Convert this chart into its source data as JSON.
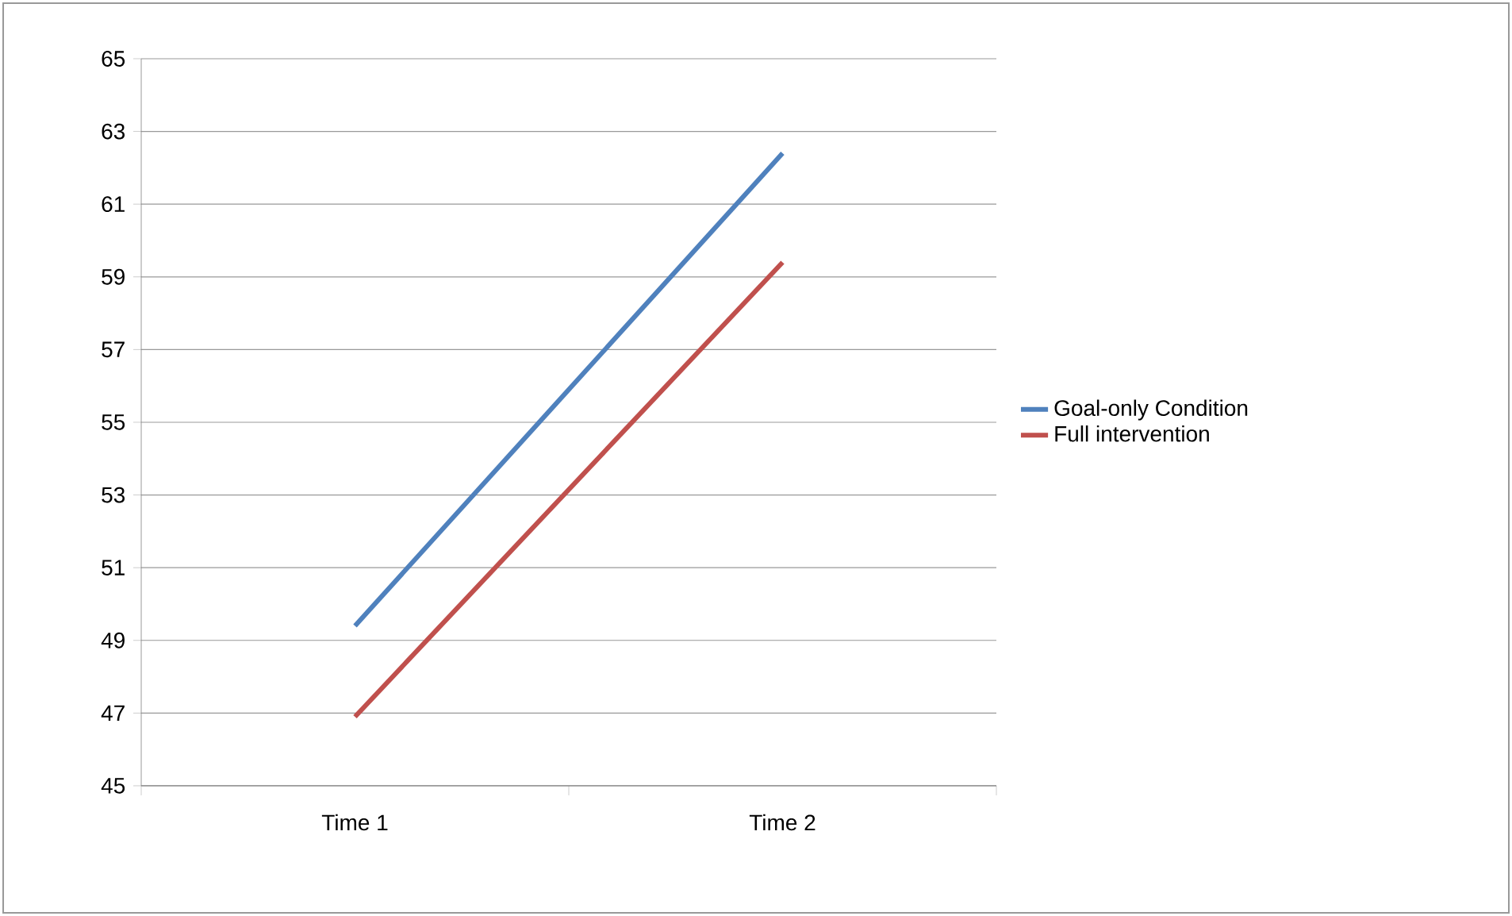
{
  "chart_data": {
    "type": "line",
    "categories": [
      "Time 1",
      "Time 2"
    ],
    "series": [
      {
        "name": "Goal-only Condition",
        "color": "#4f81bd",
        "values": [
          49.4,
          62.4
        ]
      },
      {
        "name": "Full intervention",
        "color": "#c0504d",
        "values": [
          46.9,
          59.4
        ]
      }
    ],
    "ylim": [
      45,
      65
    ],
    "yticks": [
      45,
      47,
      49,
      51,
      53,
      55,
      57,
      59,
      61,
      63,
      65
    ],
    "grid": "y",
    "legend": "right",
    "marker": "none",
    "line_style": "solid"
  }
}
